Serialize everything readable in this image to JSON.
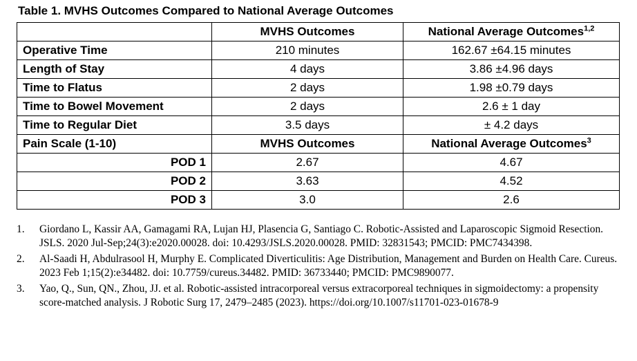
{
  "caption": "Table 1. MVHS Outcomes Compared to National Average Outcomes",
  "header": {
    "col1": "MVHS Outcomes",
    "col2": "National Average Outcomes",
    "col2_sup": "1,2"
  },
  "rows": [
    {
      "label": "Operative Time",
      "mvhs": "210 minutes",
      "national": "162.67 ±64.15 minutes"
    },
    {
      "label": "Length of Stay",
      "mvhs": "4 days",
      "national": "3.86 ±4.96 days"
    },
    {
      "label": "Time to Flatus",
      "mvhs": "2 days",
      "national": "1.98 ±0.79 days"
    },
    {
      "label": "Time to Bowel Movement",
      "mvhs": "2 days",
      "national": "2.6 ± 1 day"
    },
    {
      "label": "Time to Regular Diet",
      "mvhs": "3.5 days",
      "national": "± 4.2 days"
    }
  ],
  "pain_header": {
    "label": "Pain Scale (1-10)",
    "col1": "MVHS Outcomes",
    "col2": "National Average Outcomes",
    "col2_sup": "3"
  },
  "pain_rows": [
    {
      "label": "POD 1",
      "mvhs": "2.67",
      "national": "4.67"
    },
    {
      "label": "POD 2",
      "mvhs": "3.63",
      "national": "4.52"
    },
    {
      "label": "POD 3",
      "mvhs": "3.0",
      "national": "2.6"
    }
  ],
  "references": [
    {
      "num": "1.",
      "text": "Giordano L, Kassir AA, Gamagami RA, Lujan HJ, Plasencia G, Santiago C. Robotic-Assisted and Laparoscopic Sigmoid Resection. JSLS. 2020 Jul-Sep;24(3):e2020.00028. doi: 10.4293/JSLS.2020.00028. PMID: 32831543; PMCID: PMC7434398."
    },
    {
      "num": "2.",
      "text": "Al-Saadi H, Abdulrasool H, Murphy E. Complicated Diverticulitis: Age Distribution, Management and Burden on Health Care. Cureus. 2023 Feb 1;15(2):e34482. doi: 10.7759/cureus.34482. PMID: 36733440; PMCID: PMC9890077."
    },
    {
      "num": "3.",
      "text": "Yao, Q., Sun, QN., Zhou, JJ. et al. Robotic-assisted intracorporeal versus extracorporeal techniques in sigmoidectomy: a propensity score-matched analysis. J Robotic Surg 17, 2479–2485 (2023). https://doi.org/10.1007/s11701-023-01678-9"
    }
  ]
}
